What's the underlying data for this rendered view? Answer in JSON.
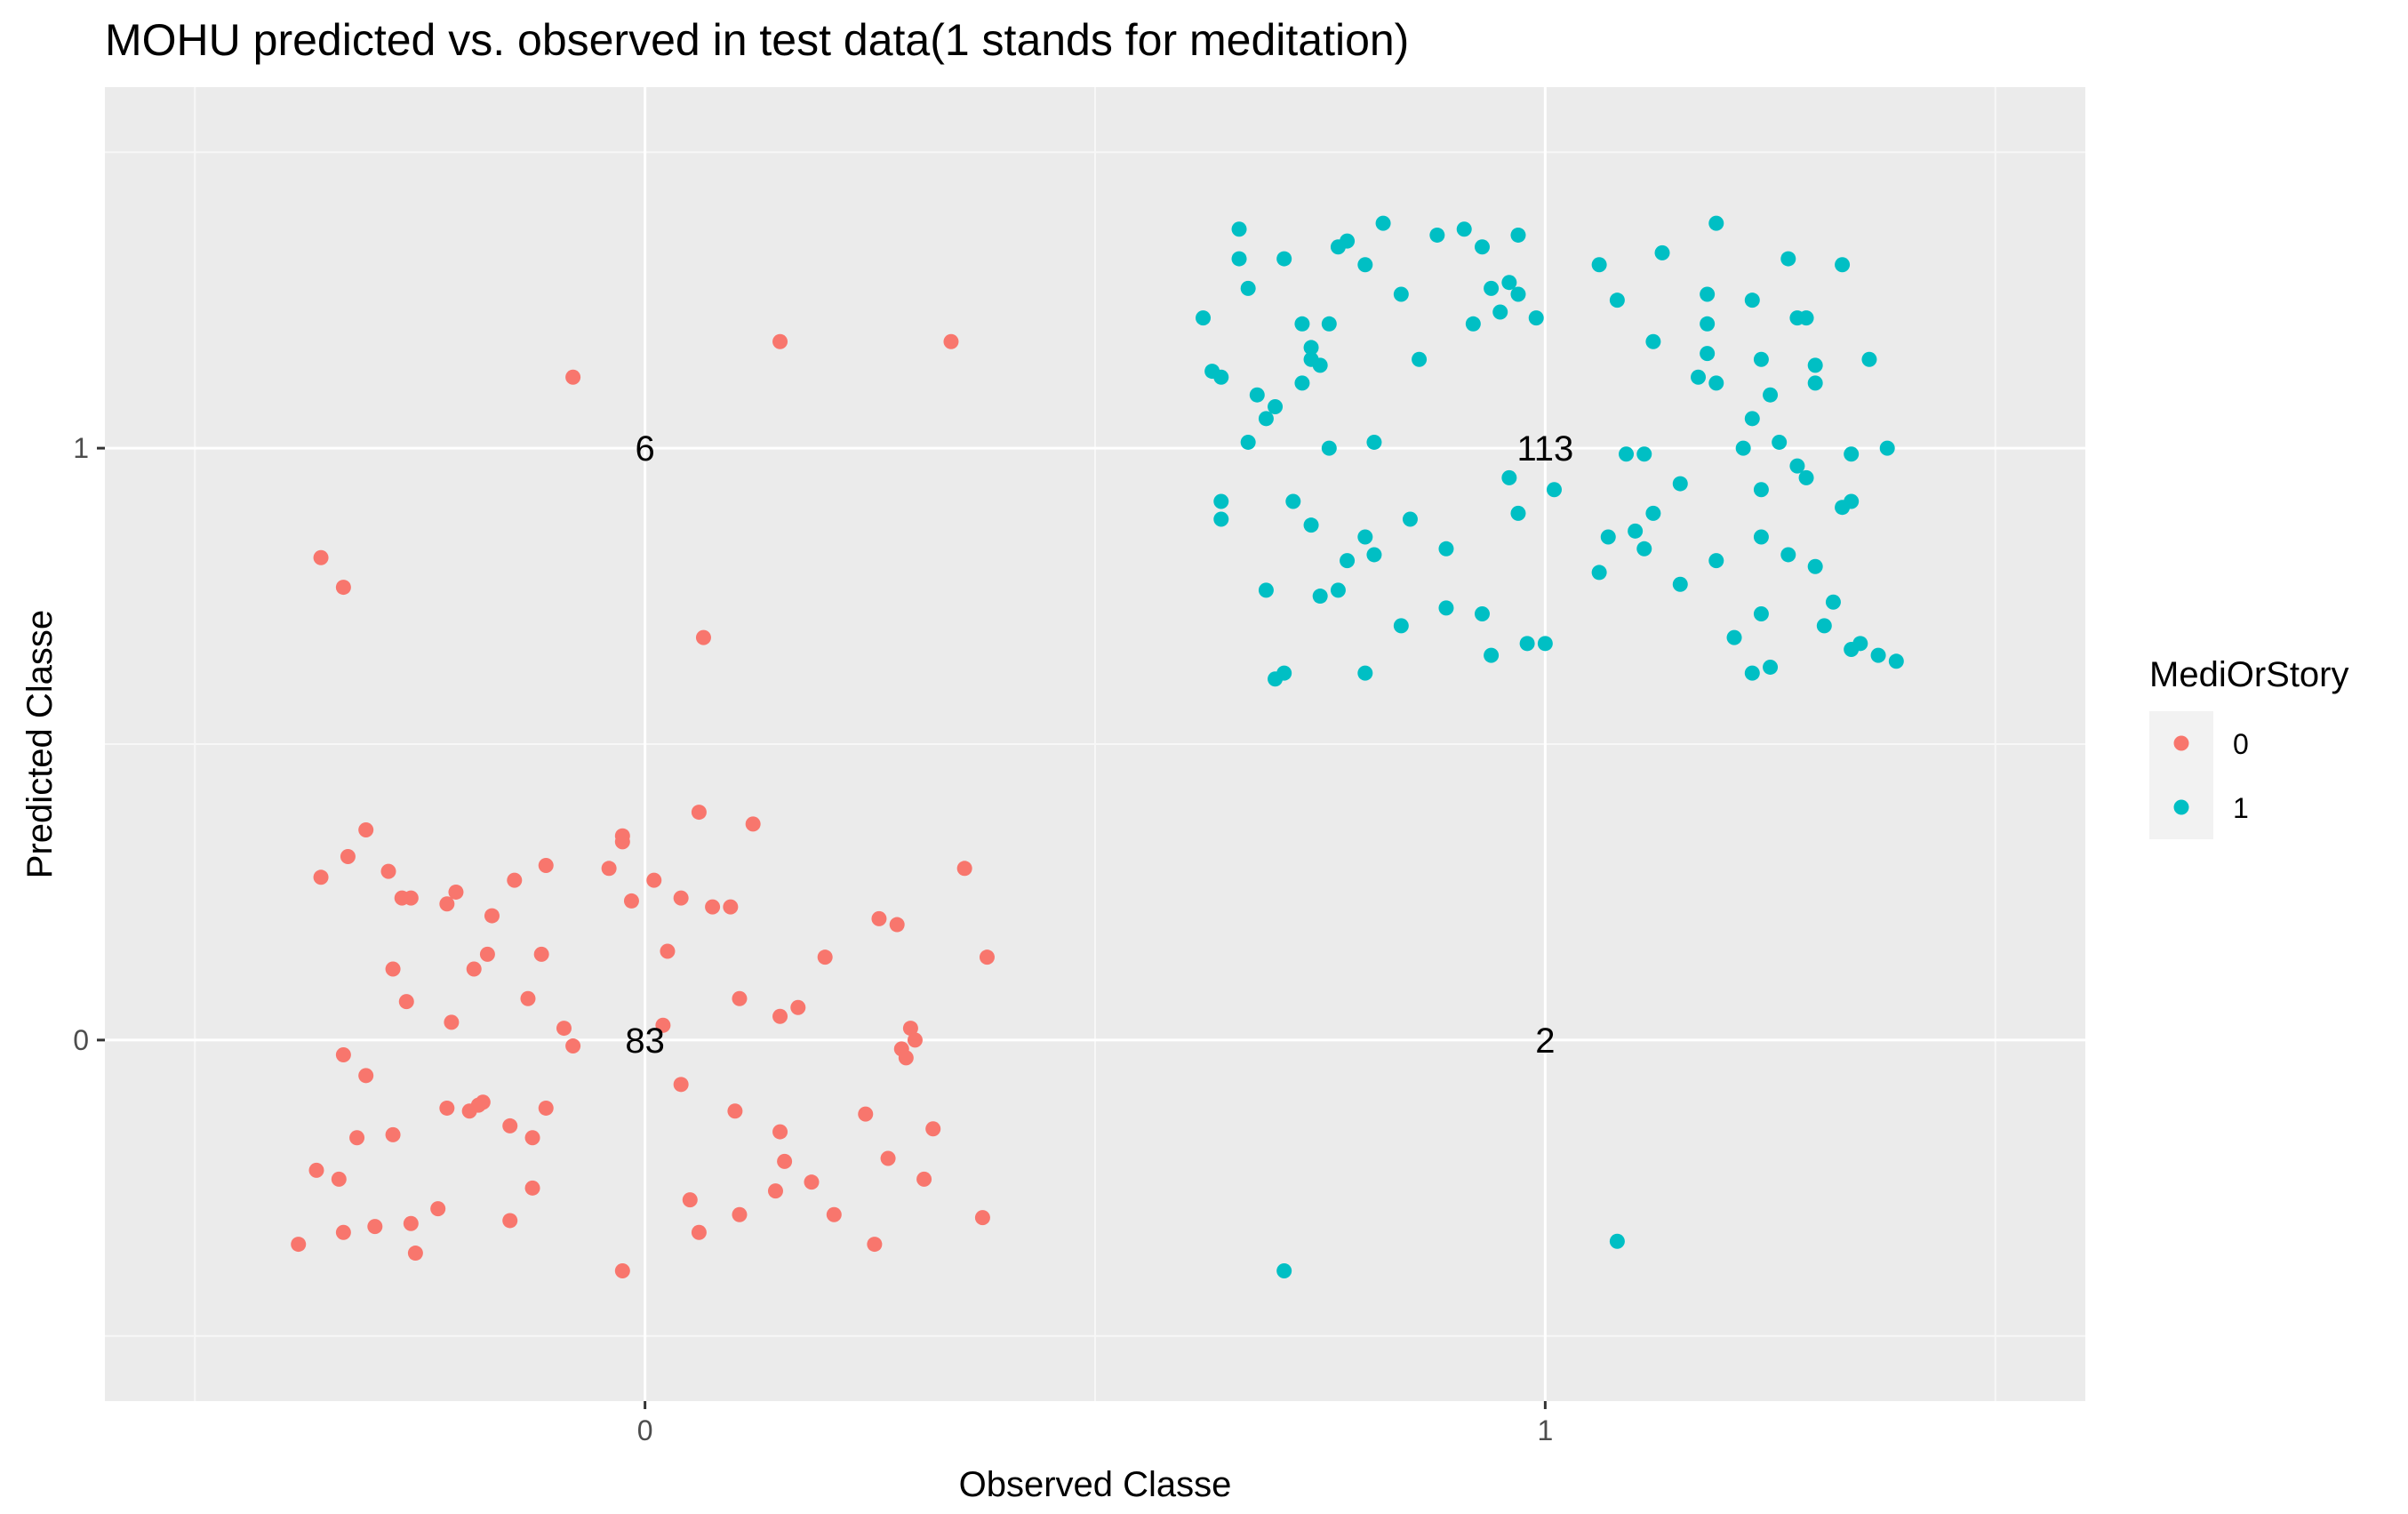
{
  "chart_data": {
    "type": "scatter",
    "title": "MOHU predicted vs. observed in test data(1 stands for meditation)",
    "xlabel": "Observed Classe",
    "ylabel": "Predicted Classe",
    "xlim": [
      -0.6,
      1.6
    ],
    "ylim": [
      -0.61,
      1.61
    ],
    "x_ticks": [
      0,
      1
    ],
    "y_ticks": [
      0,
      1
    ],
    "x_tick_labels": [
      "0",
      "1"
    ],
    "y_tick_labels": [
      "0",
      "1"
    ],
    "grid": true,
    "legend": {
      "title": "MediOrStory",
      "position": "right"
    },
    "count_labels": [
      {
        "x": 0,
        "y": 1,
        "text": "6"
      },
      {
        "x": 1,
        "y": 1,
        "text": "113"
      },
      {
        "x": 0,
        "y": 0,
        "text": "83"
      },
      {
        "x": 1,
        "y": 0,
        "text": "2"
      }
    ],
    "series": [
      {
        "name": "0",
        "color": "#F8766D",
        "points": [
          [
            -0.08,
            1.12
          ],
          [
            0.15,
            1.18
          ],
          [
            0.34,
            1.18
          ],
          [
            -0.36,
            0.815
          ],
          [
            -0.335,
            0.765
          ],
          [
            0.065,
            0.68
          ],
          [
            -0.36,
            0.275
          ],
          [
            -0.33,
            0.31
          ],
          [
            -0.31,
            0.355
          ],
          [
            -0.285,
            0.285
          ],
          [
            -0.27,
            0.24
          ],
          [
            -0.26,
            0.24
          ],
          [
            -0.22,
            0.23
          ],
          [
            -0.21,
            0.25
          ],
          [
            -0.28,
            0.12
          ],
          [
            -0.265,
            0.065
          ],
          [
            -0.215,
            0.03
          ],
          [
            -0.19,
            0.12
          ],
          [
            -0.175,
            0.145
          ],
          [
            -0.17,
            0.21
          ],
          [
            -0.145,
            0.27
          ],
          [
            -0.13,
            0.07
          ],
          [
            -0.115,
            0.145
          ],
          [
            -0.11,
            0.295
          ],
          [
            -0.09,
            0.02
          ],
          [
            -0.08,
            -0.01
          ],
          [
            -0.04,
            0.29
          ],
          [
            -0.025,
            0.335
          ],
          [
            -0.025,
            0.345
          ],
          [
            -0.015,
            0.235
          ],
          [
            0.01,
            0.27
          ],
          [
            0.02,
            0.025
          ],
          [
            0.025,
            0.15
          ],
          [
            0.04,
            0.24
          ],
          [
            0.06,
            0.385
          ],
          [
            0.075,
            0.225
          ],
          [
            0.095,
            0.225
          ],
          [
            0.105,
            0.07
          ],
          [
            0.12,
            0.365
          ],
          [
            0.15,
            0.04
          ],
          [
            0.17,
            0.055
          ],
          [
            0.2,
            0.14
          ],
          [
            0.26,
            0.205
          ],
          [
            0.28,
            0.195
          ],
          [
            0.285,
            -0.015
          ],
          [
            0.29,
            -0.03
          ],
          [
            0.295,
            0.02
          ],
          [
            0.3,
            0.0
          ],
          [
            0.355,
            0.29
          ],
          [
            0.38,
            0.14
          ],
          [
            -0.335,
            -0.025
          ],
          [
            -0.31,
            -0.06
          ],
          [
            -0.32,
            -0.165
          ],
          [
            -0.28,
            -0.16
          ],
          [
            -0.22,
            -0.115
          ],
          [
            -0.195,
            -0.12
          ],
          [
            -0.185,
            -0.11
          ],
          [
            -0.18,
            -0.105
          ],
          [
            -0.15,
            -0.145
          ],
          [
            -0.125,
            -0.165
          ],
          [
            -0.11,
            -0.115
          ],
          [
            -0.365,
            -0.22
          ],
          [
            -0.34,
            -0.235
          ],
          [
            -0.125,
            -0.25
          ],
          [
            -0.385,
            -0.345
          ],
          [
            -0.335,
            -0.325
          ],
          [
            -0.3,
            -0.315
          ],
          [
            -0.26,
            -0.31
          ],
          [
            -0.255,
            -0.36
          ],
          [
            -0.23,
            -0.285
          ],
          [
            -0.15,
            -0.305
          ],
          [
            0.04,
            -0.075
          ],
          [
            0.05,
            -0.27
          ],
          [
            0.06,
            -0.325
          ],
          [
            0.1,
            -0.12
          ],
          [
            0.105,
            -0.295
          ],
          [
            0.145,
            -0.255
          ],
          [
            0.15,
            -0.155
          ],
          [
            0.155,
            -0.205
          ],
          [
            0.185,
            -0.24
          ],
          [
            0.21,
            -0.295
          ],
          [
            0.245,
            -0.125
          ],
          [
            0.255,
            -0.345
          ],
          [
            0.27,
            -0.2
          ],
          [
            0.31,
            -0.235
          ],
          [
            0.32,
            -0.15
          ],
          [
            0.375,
            -0.3
          ],
          [
            -0.025,
            -0.39
          ]
        ]
      },
      {
        "name": "1",
        "color": "#00BFC4",
        "points": [
          [
            0.66,
            1.37
          ],
          [
            0.66,
            1.32
          ],
          [
            0.67,
            1.27
          ],
          [
            0.73,
            1.11
          ],
          [
            0.74,
            1.15
          ],
          [
            0.76,
            1.0
          ],
          [
            0.77,
            1.34
          ],
          [
            0.78,
            1.35
          ],
          [
            0.8,
            1.31
          ],
          [
            0.81,
            1.01
          ],
          [
            0.82,
            1.38
          ],
          [
            0.84,
            1.26
          ],
          [
            0.86,
            1.15
          ],
          [
            0.88,
            1.36
          ],
          [
            0.91,
            1.37
          ],
          [
            0.92,
            1.21
          ],
          [
            0.93,
            1.34
          ],
          [
            0.94,
            1.27
          ],
          [
            0.95,
            1.23
          ],
          [
            0.96,
            1.28
          ],
          [
            0.97,
            1.36
          ],
          [
            0.97,
            1.26
          ],
          [
            0.99,
            1.22
          ],
          [
            1.06,
            1.31
          ],
          [
            1.08,
            1.25
          ],
          [
            1.09,
            0.99
          ],
          [
            1.11,
            0.99
          ],
          [
            1.12,
            1.18
          ],
          [
            1.13,
            1.33
          ],
          [
            1.17,
            1.12
          ],
          [
            1.18,
            1.26
          ],
          [
            1.18,
            1.21
          ],
          [
            1.18,
            1.16
          ],
          [
            1.19,
            1.11
          ],
          [
            1.19,
            1.38
          ],
          [
            1.22,
            1.0
          ],
          [
            1.23,
            1.25
          ],
          [
            1.23,
            1.05
          ],
          [
            1.24,
            1.15
          ],
          [
            1.25,
            1.09
          ],
          [
            1.26,
            1.01
          ],
          [
            1.27,
            1.32
          ],
          [
            1.28,
            1.22
          ],
          [
            1.29,
            1.22
          ],
          [
            1.3,
            1.14
          ],
          [
            1.3,
            1.11
          ],
          [
            1.33,
            1.31
          ],
          [
            1.34,
            0.99
          ],
          [
            1.36,
            1.15
          ],
          [
            1.38,
            1.0
          ],
          [
            1.28,
            0.97
          ],
          [
            1.29,
            0.95
          ],
          [
            1.24,
            0.93
          ],
          [
            1.15,
            0.94
          ],
          [
            1.1,
            0.86
          ],
          [
            1.19,
            0.81
          ],
          [
            1.12,
            0.89
          ],
          [
            0.62,
            1.22
          ],
          [
            0.63,
            1.13
          ],
          [
            0.64,
            1.12
          ],
          [
            0.64,
            0.91
          ],
          [
            0.64,
            0.88
          ],
          [
            0.67,
            1.01
          ],
          [
            0.68,
            1.09
          ],
          [
            0.69,
            1.05
          ],
          [
            0.7,
            1.07
          ],
          [
            0.71,
            1.32
          ],
          [
            0.73,
            1.21
          ],
          [
            0.74,
            1.17
          ],
          [
            0.72,
            0.91
          ],
          [
            0.75,
            1.14
          ],
          [
            0.76,
            1.21
          ],
          [
            0.78,
            0.81
          ],
          [
            0.8,
            0.85
          ],
          [
            0.81,
            0.82
          ],
          [
            0.85,
            0.88
          ],
          [
            0.89,
            0.83
          ],
          [
            0.96,
            0.95
          ],
          [
            0.97,
            0.89
          ],
          [
            1.01,
            0.93
          ],
          [
            1.06,
            0.79
          ],
          [
            1.07,
            0.85
          ],
          [
            1.11,
            0.83
          ],
          [
            1.15,
            0.77
          ],
          [
            1.24,
            0.85
          ],
          [
            1.27,
            0.82
          ],
          [
            1.3,
            0.8
          ],
          [
            1.32,
            0.74
          ],
          [
            1.33,
            0.9
          ],
          [
            1.34,
            0.91
          ],
          [
            1.31,
            0.7
          ],
          [
            1.35,
            0.67
          ],
          [
            1.37,
            0.65
          ],
          [
            1.39,
            0.64
          ],
          [
            1.34,
            0.66
          ],
          [
            1.21,
            0.68
          ],
          [
            1.24,
            0.72
          ],
          [
            1.23,
            0.62
          ],
          [
            1.25,
            0.63
          ],
          [
            0.7,
            0.61
          ],
          [
            0.71,
            0.62
          ],
          [
            0.74,
            0.87
          ],
          [
            0.75,
            0.75
          ],
          [
            0.77,
            0.76
          ],
          [
            0.84,
            0.7
          ],
          [
            0.89,
            0.73
          ],
          [
            0.93,
            0.72
          ],
          [
            0.94,
            0.65
          ],
          [
            0.98,
            0.67
          ],
          [
            1.0,
            0.67
          ],
          [
            0.69,
            0.76
          ],
          [
            0.8,
            0.62
          ],
          [
            1.08,
            -0.34
          ],
          [
            0.71,
            -0.39
          ]
        ]
      }
    ]
  }
}
